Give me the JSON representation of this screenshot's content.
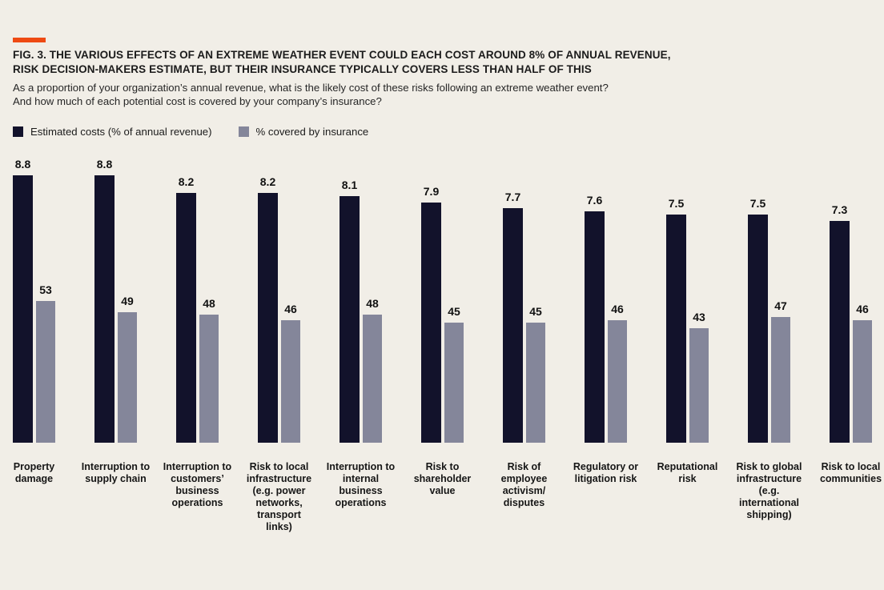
{
  "figure": {
    "title_line1": "FIG. 3. THE VARIOUS EFFECTS OF AN EXTREME WEATHER EVENT COULD EACH COST AROUND 8% OF ANNUAL REVENUE,",
    "title_line2": "RISK DECISION-MAKERS ESTIMATE, BUT THEIR INSURANCE TYPICALLY COVERS LESS THAN HALF OF THIS",
    "subtitle_line1": "As a proportion of your organization’s annual revenue, what is the likely cost of these risks following an extreme weather event?",
    "subtitle_line2": "And how much of each potential cost is covered by your company’s insurance?"
  },
  "colors": {
    "background": "#f1eee7",
    "accent_dash": "#ee4a13",
    "cost_bar": "#12122b",
    "insurance_bar": "#84869a",
    "text": "#1b1b1b"
  },
  "legend": [
    {
      "label": "Estimated costs (% of annual revenue)",
      "color": "#12122b"
    },
    {
      "label": "% covered by insurance",
      "color": "#84869a"
    }
  ],
  "chart_data": {
    "type": "bar",
    "title": "FIG. 3. THE VARIOUS EFFECTS OF AN EXTREME WEATHER EVENT COULD EACH COST AROUND 8% OF ANNUAL REVENUE, RISK DECISION-MAKERS ESTIMATE, BUT THEIR INSURANCE TYPICALLY COVERS LESS THAN HALF OF THIS",
    "subtitle": "As a proportion of your organization’s annual revenue, what is the likely cost of these risks following an extreme weather event? And how much of each potential cost is covered by your company’s insurance?",
    "categories": [
      "Property damage",
      "Interruption to supply chain",
      "Interruption to customers’ business operations",
      "Risk to local infrastructure (e.g. power networks, transport links)",
      "Interruption to internal business operations",
      "Risk to shareholder value",
      "Risk of employee activism/ disputes",
      "Regulatory or litigation risk",
      "Reputational risk",
      "Risk to global infrastructure (e.g. international shipping)",
      "Risk to local communities"
    ],
    "categories_display": [
      "Property\ndamage",
      "Interruption to\nsupply chain",
      "Interruption to\ncustomers’\nbusiness\noperations",
      "Risk to local\ninfrastructure\n(e.g. power\nnetworks,\ntransport\nlinks)",
      "Interruption to\ninternal\nbusiness\noperations",
      "Risk to\nshareholder\nvalue",
      "Risk of\nemployee\nactivism/\ndisputes",
      "Regulatory or\nlitigation risk",
      "Reputational\nrisk",
      "Risk to global\ninfrastructure\n(e.g.\ninternational\nshipping)",
      "Risk to local\ncommunities"
    ],
    "series": [
      {
        "name": "Estimated costs (% of annual revenue)",
        "values": [
          8.8,
          8.8,
          8.2,
          8.2,
          8.1,
          7.9,
          7.7,
          7.6,
          7.5,
          7.5,
          7.3
        ],
        "color": "#12122b",
        "scale": "percent of annual revenue, 0–8.8 shown"
      },
      {
        "name": "% covered by insurance",
        "values": [
          53,
          49,
          48,
          46,
          48,
          45,
          45,
          46,
          43,
          47,
          46
        ],
        "color": "#84869a",
        "scale": "percent of the potential cost, 0–100"
      }
    ],
    "value_labels": "shown above every bar",
    "axes": "none (no gridlines, no axis lines, values labeled directly)",
    "grid": false,
    "legend_position": "top-left above chart"
  }
}
